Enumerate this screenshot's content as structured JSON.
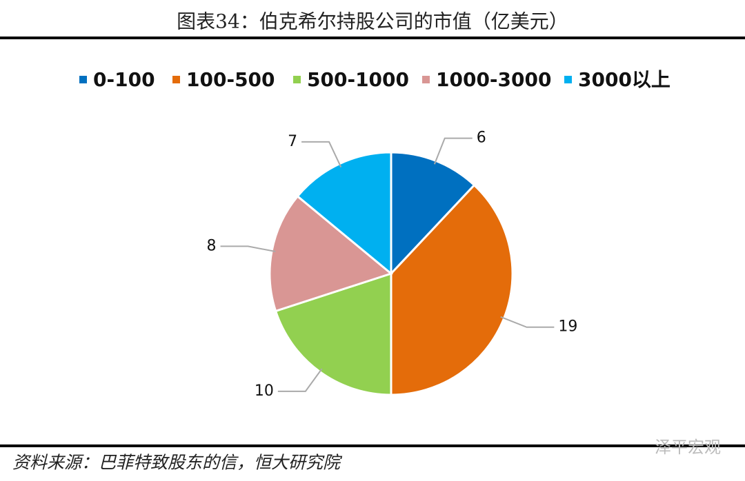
{
  "chart_data": {
    "type": "pie",
    "title": "图表34：伯克希尔持股公司的市值（亿美元）",
    "categories": [
      "0-100",
      "100-500",
      "500-1000",
      "1000-3000",
      "3000以上"
    ],
    "values": [
      6,
      19,
      10,
      8,
      7
    ],
    "colors": [
      "#0070c0",
      "#e46c0a",
      "#92d050",
      "#d99694",
      "#00b0f0"
    ],
    "legend": "top",
    "source": "资料来源：巴菲特致股东的信，恒大研究院",
    "watermark": "泽平宏观"
  }
}
